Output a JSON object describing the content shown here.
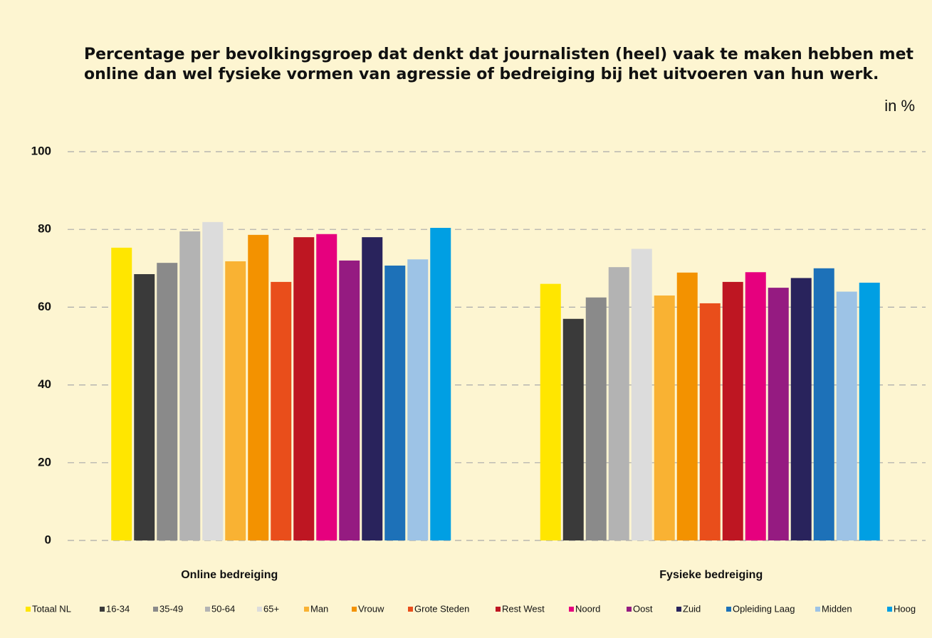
{
  "chart_data": {
    "type": "bar",
    "title": [
      "Percentage per bevolkingsgroep dat denkt dat journalisten (heel) vaak te maken hebben met",
      "online dan wel fysieke vormen van agressie of bedreiging bij het uitvoeren van hun werk."
    ],
    "unit_label": "in %",
    "categories": [
      "Online bedreiging",
      "Fysieke bedreiging"
    ],
    "series": [
      {
        "name": "Totaal NL",
        "color": "#ffe600",
        "values": [
          75.3,
          66
        ]
      },
      {
        "name": "16-34",
        "color": "#3a3a3a",
        "values": [
          68.5,
          57
        ]
      },
      {
        "name": "35-49",
        "color": "#8a8a8a",
        "values": [
          71.4,
          62.5
        ]
      },
      {
        "name": "50-64",
        "color": "#b3b3b3",
        "values": [
          79.5,
          70.3
        ]
      },
      {
        "name": "65+",
        "color": "#dcdcdc",
        "values": [
          81.9,
          75
        ]
      },
      {
        "name": "Man",
        "color": "#f9b233",
        "values": [
          71.8,
          63
        ]
      },
      {
        "name": "Vrouw",
        "color": "#f39200",
        "values": [
          78.6,
          68.9
        ]
      },
      {
        "name": "Grote Steden",
        "color": "#e94e1b",
        "values": [
          66.5,
          61
        ]
      },
      {
        "name": "Rest West",
        "color": "#be1622",
        "values": [
          78,
          66.5
        ]
      },
      {
        "name": "Noord",
        "color": "#e6007e",
        "values": [
          78.8,
          69
        ]
      },
      {
        "name": "Oost",
        "color": "#951b81",
        "values": [
          72,
          65
        ]
      },
      {
        "name": "Zuid",
        "color": "#29235c",
        "values": [
          78,
          67.5
        ]
      },
      {
        "name": "Opleiding Laag",
        "color": "#1d71b8",
        "values": [
          70.7,
          70
        ]
      },
      {
        "name": "Midden",
        "color": "#9dc3e6",
        "values": [
          72.3,
          64
        ]
      },
      {
        "name": "Hoog",
        "color": "#009fe3",
        "values": [
          80.4,
          66.3
        ]
      }
    ],
    "ylim": [
      0,
      100
    ],
    "yticks": [
      0,
      20,
      40,
      60,
      80,
      100
    ],
    "grid": true
  }
}
